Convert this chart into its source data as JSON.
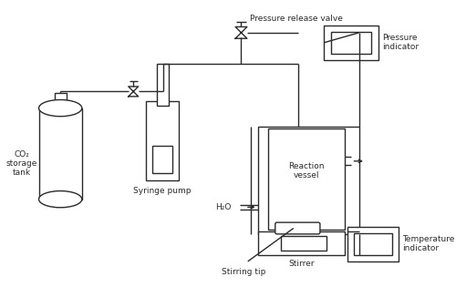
{
  "figsize": [
    5.0,
    3.15
  ],
  "dpi": 100,
  "bg_color": "#ffffff",
  "line_color": "#2a2a2a",
  "line_width": 1.0,
  "labels": {
    "co2_tank": "CO₂\nstorage\ntank",
    "syringe_pump": "Syringe pump",
    "reaction_vessel": "Reaction\nvessel",
    "pressure_release_valve": "Pressure release valve",
    "pressure_indicator": "Pressure\nindicator",
    "temperature_indicator": "Temperature\nindicator",
    "stirrer": "Stirrer",
    "stirring_tip": "Stirring tip",
    "h2o": "H₂O"
  },
  "font_size": 6.5
}
